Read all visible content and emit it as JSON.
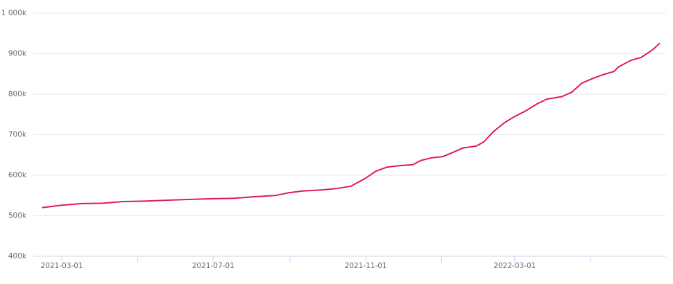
{
  "chart_data": {
    "type": "line",
    "x": [
      "2021-02-13",
      "2021-03-01",
      "2021-03-17",
      "2021-04-03",
      "2021-04-19",
      "2021-05-06",
      "2021-05-22",
      "2021-06-08",
      "2021-07-01",
      "2021-07-18",
      "2021-08-03",
      "2021-08-20",
      "2021-08-31",
      "2021-09-11",
      "2021-09-27",
      "2021-10-08",
      "2021-10-20",
      "2021-11-01",
      "2021-11-09",
      "2021-11-18",
      "2021-11-29",
      "2021-12-09",
      "2021-12-15",
      "2021-12-24",
      "2022-01-02",
      "2022-01-10",
      "2022-01-18",
      "2022-01-29",
      "2022-02-04",
      "2022-02-12",
      "2022-02-21",
      "2022-03-01",
      "2022-03-10",
      "2022-03-19",
      "2022-03-27",
      "2022-04-08",
      "2022-04-16",
      "2022-04-24",
      "2022-05-03",
      "2022-05-11",
      "2022-05-20",
      "2022-05-24",
      "2022-06-03",
      "2022-06-11",
      "2022-06-20",
      "2022-06-26"
    ],
    "series": [
      {
        "color": "#e0185a",
        "values": [
          520000,
          526000,
          530000,
          531000,
          535000,
          536000,
          538000,
          540000,
          542000,
          543000,
          547000,
          550000,
          557000,
          561000,
          564000,
          567000,
          573000,
          593000,
          610000,
          620000,
          624000,
          626000,
          636000,
          643000,
          646000,
          656000,
          667000,
          672000,
          682000,
          708000,
          730000,
          745000,
          759000,
          776000,
          788000,
          794000,
          805000,
          827000,
          839000,
          848000,
          856000,
          868000,
          884000,
          891000,
          909000,
          926000
        ]
      }
    ],
    "xlim": [
      "2021-02-06",
      "2022-07-01"
    ],
    "xticks": [
      "2021-03-01",
      "2021-07-01",
      "2021-11-01",
      "2022-03-01"
    ],
    "xticks_minor": [
      "2021-05-01",
      "2021-09-01",
      "2022-01-01",
      "2022-05-01"
    ],
    "ylim": [
      400000,
      1000000
    ],
    "yticks": [
      {
        "value": 400000,
        "label": "400k"
      },
      {
        "value": 500000,
        "label": "500k"
      },
      {
        "value": 600000,
        "label": "600k"
      },
      {
        "value": 700000,
        "label": "700k"
      },
      {
        "value": 800000,
        "label": "800k"
      },
      {
        "value": 900000,
        "label": "900k"
      },
      {
        "value": 1000000,
        "label": "1 000k"
      }
    ],
    "grid": true
  }
}
